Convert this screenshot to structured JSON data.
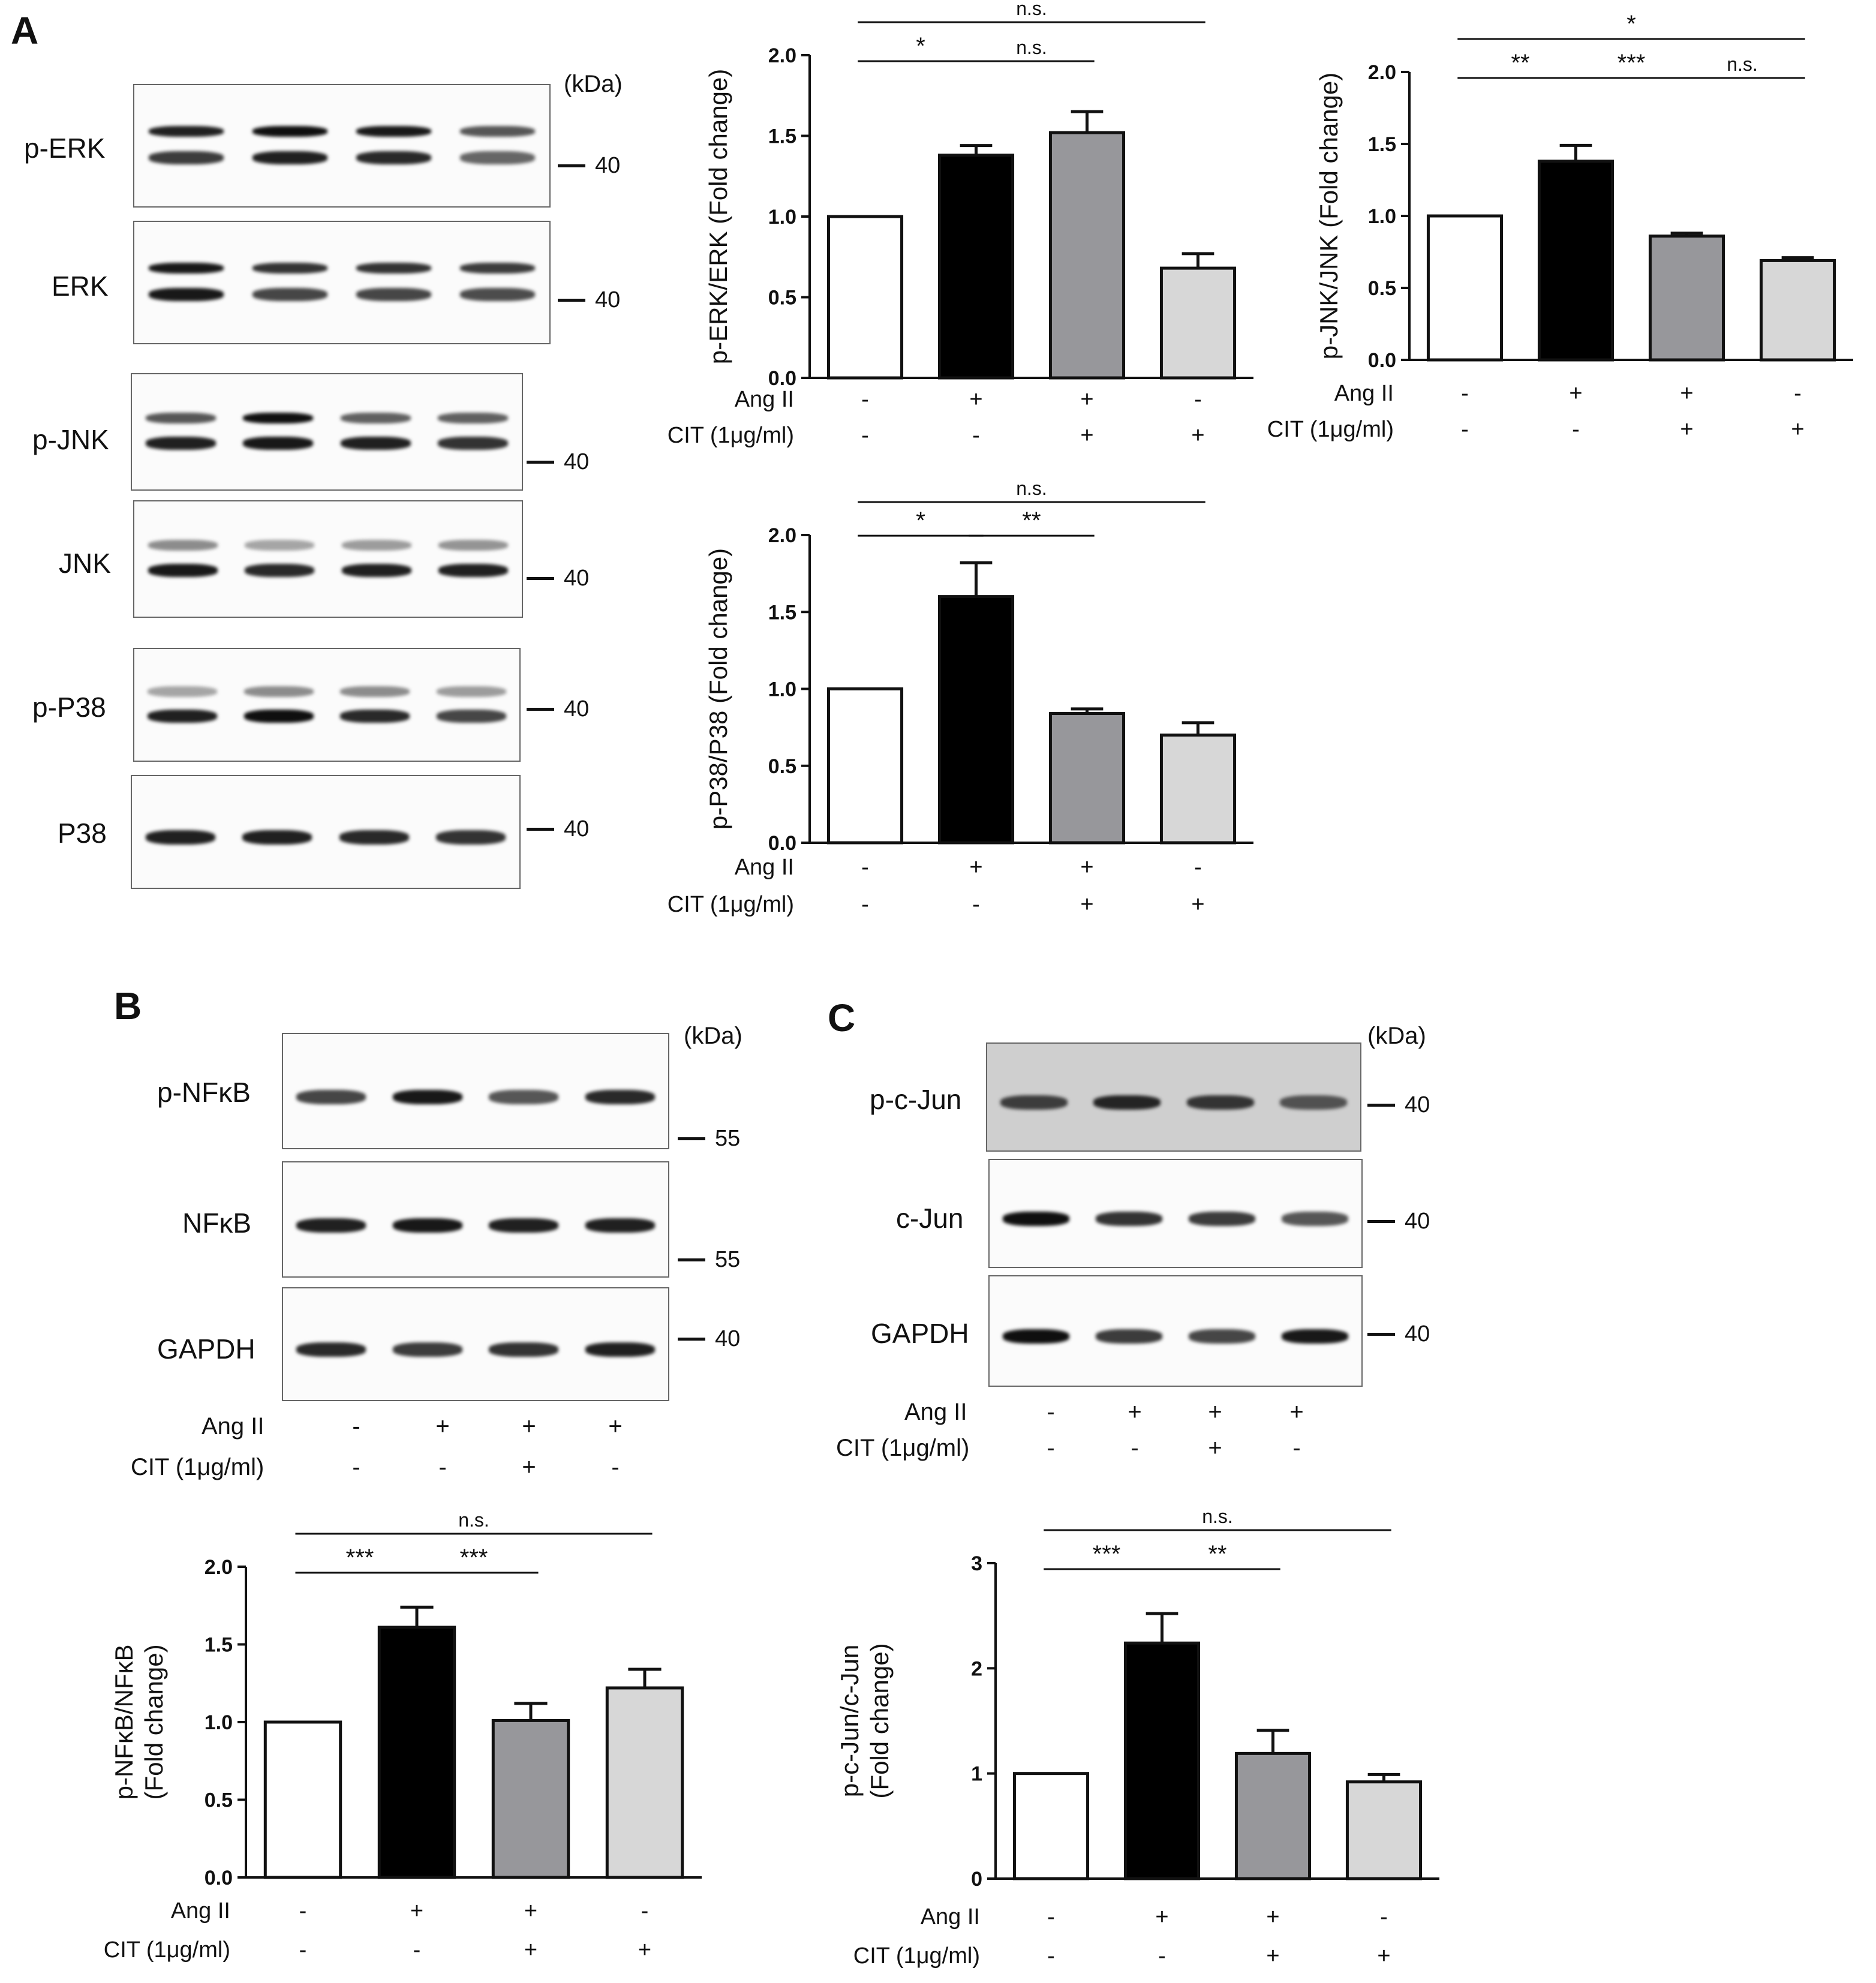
{
  "panels": {
    "a": "A",
    "b": "B",
    "c": "C"
  },
  "units": "(kDa)",
  "blots": {
    "a": [
      {
        "label": "p-ERK",
        "marker": "40",
        "lanes": [
          [
            0.75,
            0.9
          ],
          [
            0.9,
            1.0
          ],
          [
            0.85,
            0.95
          ],
          [
            0.5,
            0.6
          ]
        ]
      },
      {
        "label": "ERK",
        "marker": "40",
        "lanes": [
          [
            0.95,
            0.95
          ],
          [
            0.7,
            0.8
          ],
          [
            0.7,
            0.8
          ],
          [
            0.65,
            0.75
          ]
        ]
      },
      {
        "label": "p-JNK",
        "marker": "40",
        "lanes": [
          [
            0.9,
            0.6
          ],
          [
            0.95,
            1.0
          ],
          [
            0.9,
            0.55
          ],
          [
            0.8,
            0.55
          ]
        ]
      },
      {
        "label": "JNK",
        "marker": "40",
        "lanes": [
          [
            0.95,
            0.3
          ],
          [
            0.85,
            0.15
          ],
          [
            0.9,
            0.2
          ],
          [
            0.9,
            0.25
          ]
        ]
      },
      {
        "label": "p-P38",
        "marker": "40",
        "lanes": [
          [
            0.9,
            0.15
          ],
          [
            1.0,
            0.3
          ],
          [
            0.85,
            0.3
          ],
          [
            0.7,
            0.2
          ]
        ]
      },
      {
        "label": "P38",
        "marker": "40",
        "lanes": [
          [
            0.9,
            0
          ],
          [
            0.9,
            0
          ],
          [
            0.85,
            0
          ],
          [
            0.8,
            0
          ]
        ]
      }
    ],
    "b": [
      {
        "label": "p-NFκB",
        "marker": "55",
        "lanes": [
          [
            0.7,
            0
          ],
          [
            0.95,
            0
          ],
          [
            0.6,
            0
          ],
          [
            0.85,
            0
          ]
        ]
      },
      {
        "label": "NFκB",
        "marker": "55",
        "lanes": [
          [
            0.9,
            0
          ],
          [
            0.95,
            0
          ],
          [
            0.9,
            0
          ],
          [
            0.9,
            0
          ]
        ]
      },
      {
        "label": "GAPDH",
        "marker": "40",
        "lanes": [
          [
            0.85,
            0
          ],
          [
            0.75,
            0
          ],
          [
            0.8,
            0
          ],
          [
            0.9,
            0
          ]
        ]
      }
    ],
    "c": [
      {
        "label": "p-c-Jun",
        "marker": "40",
        "lanes": [
          [
            0.7,
            0
          ],
          [
            0.85,
            0
          ],
          [
            0.75,
            0
          ],
          [
            0.55,
            0
          ]
        ]
      },
      {
        "label": "c-Jun",
        "marker": "40",
        "lanes": [
          [
            1.0,
            0
          ],
          [
            0.8,
            0
          ],
          [
            0.75,
            0
          ],
          [
            0.6,
            0
          ]
        ]
      },
      {
        "label": "GAPDH",
        "marker": "40",
        "lanes": [
          [
            1.0,
            0
          ],
          [
            0.75,
            0
          ],
          [
            0.7,
            0
          ],
          [
            0.95,
            0
          ]
        ]
      }
    ]
  },
  "conditions": {
    "ang": "Ang II",
    "cit": "CIT (1μg/ml)",
    "blot_b_ang": [
      "-",
      "+",
      "+",
      "+"
    ],
    "blot_b_cit": [
      "-",
      "-",
      "+",
      "-"
    ],
    "blot_c_ang": [
      "-",
      "+",
      "+",
      "+"
    ],
    "blot_c_cit": [
      "-",
      "-",
      "+",
      "-"
    ]
  },
  "chart_data": [
    {
      "id": "perk",
      "type": "bar",
      "ylabel": "p-ERK/ERK (Fold change)",
      "ylim": [
        0,
        2.0
      ],
      "yticks": [
        "0.0",
        "0.5",
        "1.0",
        "1.5",
        "2.0"
      ],
      "values": [
        1.0,
        1.38,
        1.52,
        0.68
      ],
      "errors": [
        0,
        0.06,
        0.13,
        0.09
      ],
      "colors": [
        "#ffffff",
        "#000000",
        "#97979b",
        "#d7d7d7"
      ],
      "ang": [
        "-",
        "+",
        "+",
        "-"
      ],
      "cit": [
        "-",
        "-",
        "+",
        "+"
      ],
      "sig": [
        {
          "from": 0,
          "to": 1,
          "label": "*"
        },
        {
          "from": 1,
          "to": 2,
          "label": "n.s."
        },
        {
          "from": 0,
          "to": 3,
          "label": "n.s."
        }
      ]
    },
    {
      "id": "pjnk",
      "type": "bar",
      "ylabel": "p-JNK/JNK (Fold change)",
      "ylim": [
        0,
        2.0
      ],
      "yticks": [
        "0.0",
        "0.5",
        "1.0",
        "1.5",
        "2.0"
      ],
      "values": [
        1.0,
        1.38,
        0.86,
        0.69
      ],
      "errors": [
        0,
        0.11,
        0.02,
        0.02
      ],
      "colors": [
        "#ffffff",
        "#000000",
        "#97979b",
        "#d7d7d7"
      ],
      "ang": [
        "-",
        "+",
        "+",
        "-"
      ],
      "cit": [
        "-",
        "-",
        "+",
        "+"
      ],
      "sig": [
        {
          "from": 0,
          "to": 1,
          "label": "**"
        },
        {
          "from": 1,
          "to": 2,
          "label": "***"
        },
        {
          "from": 2,
          "to": 3,
          "label": "n.s."
        },
        {
          "from": 0,
          "to": 3,
          "label": "*"
        }
      ]
    },
    {
      "id": "pp38",
      "type": "bar",
      "ylabel": "p-P38/P38 (Fold change)",
      "ylim": [
        0,
        2.0
      ],
      "yticks": [
        "0.0",
        "0.5",
        "1.0",
        "1.5",
        "2.0"
      ],
      "values": [
        1.0,
        1.6,
        0.84,
        0.7
      ],
      "errors": [
        0,
        0.22,
        0.03,
        0.08
      ],
      "colors": [
        "#ffffff",
        "#000000",
        "#97979b",
        "#d7d7d7"
      ],
      "ang": [
        "-",
        "+",
        "+",
        "-"
      ],
      "cit": [
        "-",
        "-",
        "+",
        "+"
      ],
      "sig": [
        {
          "from": 0,
          "to": 1,
          "label": "*"
        },
        {
          "from": 1,
          "to": 2,
          "label": "**"
        },
        {
          "from": 0,
          "to": 3,
          "label": "n.s."
        }
      ]
    },
    {
      "id": "pnfkb",
      "type": "bar",
      "ylabel": [
        "p-NFκB/NFκB",
        "(Fold change)"
      ],
      "ylim": [
        0,
        2.0
      ],
      "yticks": [
        "0.0",
        "0.5",
        "1.0",
        "1.5",
        "2.0"
      ],
      "values": [
        1.0,
        1.61,
        1.01,
        1.22
      ],
      "errors": [
        0,
        0.13,
        0.11,
        0.12
      ],
      "colors": [
        "#ffffff",
        "#000000",
        "#97979b",
        "#d7d7d7"
      ],
      "ang": [
        "-",
        "+",
        "+",
        "-"
      ],
      "cit": [
        "-",
        "-",
        "+",
        "+"
      ],
      "sig": [
        {
          "from": 0,
          "to": 1,
          "label": "***"
        },
        {
          "from": 1,
          "to": 2,
          "label": "***"
        },
        {
          "from": 0,
          "to": 3,
          "label": "n.s."
        }
      ]
    },
    {
      "id": "pcjun",
      "type": "bar",
      "ylabel": [
        "p-c-Jun/c-Jun",
        "(Fold change)"
      ],
      "ylim": [
        0,
        3
      ],
      "yticks": [
        "0",
        "1",
        "2",
        "3"
      ],
      "values": [
        1.0,
        2.24,
        1.19,
        0.92
      ],
      "errors": [
        0,
        0.28,
        0.22,
        0.07
      ],
      "colors": [
        "#ffffff",
        "#000000",
        "#97979b",
        "#d7d7d7"
      ],
      "ang": [
        "-",
        "+",
        "+",
        "-"
      ],
      "cit": [
        "-",
        "-",
        "+",
        "+"
      ],
      "sig": [
        {
          "from": 0,
          "to": 1,
          "label": "***"
        },
        {
          "from": 1,
          "to": 2,
          "label": "**"
        },
        {
          "from": 0,
          "to": 3,
          "label": "n.s."
        }
      ]
    }
  ]
}
